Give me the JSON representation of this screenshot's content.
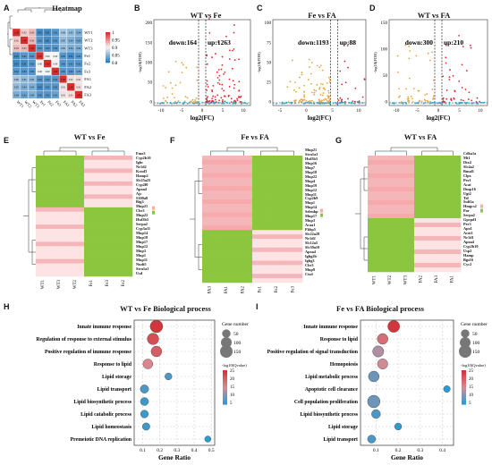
{
  "panels": {
    "A": {
      "letter": "A",
      "title": "Heatmap",
      "rows": [
        "WT1",
        "WT2",
        "WT3",
        "Fe1",
        "Fe2",
        "Fe3",
        "FA1",
        "FA2",
        "FA3"
      ],
      "cols": [
        "WT1",
        "WT2",
        "WT3",
        "Fe1",
        "Fe2",
        "Fe3",
        "FA1",
        "FA2",
        "FA3"
      ],
      "values": [
        [
          1,
          0.92,
          0.93,
          0.81,
          0.81,
          0.82,
          0.86,
          0.85,
          0.84
        ],
        [
          0.92,
          1,
          0.93,
          0.82,
          0.81,
          0.82,
          0.85,
          0.84,
          0.83
        ],
        [
          0.93,
          0.93,
          1,
          0.82,
          0.82,
          0.82,
          0.85,
          0.84,
          0.84
        ],
        [
          0.81,
          0.82,
          0.82,
          1,
          0.9,
          0.9,
          0.82,
          0.81,
          0.82
        ],
        [
          0.81,
          0.81,
          0.82,
          0.9,
          1,
          0.9,
          0.82,
          0.82,
          0.82
        ],
        [
          0.82,
          0.82,
          0.82,
          0.9,
          0.9,
          1,
          0.82,
          0.82,
          0.83
        ],
        [
          0.86,
          0.85,
          0.85,
          0.82,
          0.82,
          0.82,
          1,
          0.91,
          0.91
        ],
        [
          0.85,
          0.84,
          0.84,
          0.81,
          0.82,
          0.82,
          0.91,
          1,
          0.91
        ],
        [
          0.84,
          0.83,
          0.84,
          0.82,
          0.82,
          0.83,
          0.91,
          0.91,
          1
        ]
      ],
      "legend_ticks": [
        "1",
        "0.95",
        "0.9",
        "0.85",
        "0.8"
      ],
      "colors": {
        "high": "#d7302c",
        "mid": "#f4f4f4",
        "low": "#2f7fbf"
      }
    },
    "B": {
      "letter": "B",
      "title": "WT vs Fe",
      "down": "down:164",
      "up": "up:1263",
      "ylabel": "-log10(FDR)",
      "xlabel": "log2(FC)",
      "xticks": [
        "-10",
        "-5",
        "0",
        "5",
        "10"
      ],
      "yticks": [
        "0",
        "50",
        "100",
        "150",
        "200"
      ]
    },
    "C": {
      "letter": "C",
      "title": "Fe vs FA",
      "down": "down:1193",
      "up": "up:88",
      "ylabel": "-log10(FDR)",
      "xlabel": "log2(FC)",
      "xticks": [
        "-5",
        "0",
        "5",
        "10"
      ],
      "yticks": [
        "0",
        "25",
        "50",
        "75",
        "100"
      ]
    },
    "D": {
      "letter": "D",
      "title": "WT vs FA",
      "down": "down:300",
      "up": "up:210",
      "ylabel": "-log10(FDR)",
      "xlabel": "log2(FC)",
      "xticks": [
        "-10",
        "-5",
        "0",
        "5",
        "10"
      ],
      "yticks": [
        "0",
        "50",
        "100",
        "150"
      ]
    },
    "E": {
      "letter": "E",
      "title": "WT vs Fe",
      "genes": "Fmo3\nCyp2b10\nIghc\nNr1d2\nKcnd3\nHamp2\nSlc25a25\nCyp2f0\nApoa4\nAjc\nS100a8\nBtg3\nMup21\nCbr3\nMup22\nHsd3b5\nSerpa2\nCyp3a11\nMup14\nMup18\nMup17\nMup12\nMup3\nMup1\nMup11\nNudt5\nStra1a1\nUsd",
      "samples": [
        "WT1",
        "WT3",
        "WT2",
        "Fe1",
        "Fe3",
        "Fe2"
      ]
    },
    "F": {
      "letter": "F",
      "title": "Fe vs FA",
      "genes": "Mup21\nStra1a1\nHsd3b5\nMup16\nMup7\nMup18\nMup22\nMup4\nMup19\nMup12\nMup11\nCyp2b9\nMup1\nMup14\nSelenbp\nMup17\nMup3\nAcaa1\nFkbp5\nSlc22a28\nNr1d2\nSlc12a5\nSlc39a10\nApoa4\nIghg2b\nIghg3\nCbr3\nMup9\nCtsd",
      "samples": [
        "FA3",
        "FA1",
        "FA2",
        "Fe1",
        "Fe2",
        "Fe3"
      ]
    },
    "G": {
      "letter": "G",
      "title": "WT vs FA",
      "genes": "Cdka1a\nMt1\nDtx4\nSlc4a2\nBmal1\nClpx\nPer1\nAcat\nDusp16\nUgt2\nTef\nSult5a\nHmgcs2\nPar\nSerpa2\nGpcpd1\nPer3\nApo1\nAcot1\nNr1d1\nApoa4\nCyp2b10\nUsp2\nHamp\nBgs16\nCyc2",
      "samples": [
        "WT1",
        "WT2",
        "WT3",
        "FA2",
        "FA3",
        "FA1"
      ]
    },
    "H": {
      "letter": "H",
      "title": "WT vs Fe Biological process",
      "xlabel": "Gene Ratio",
      "terms": [
        "Innate immune response",
        "Regulation of response to external stimulus",
        "Positive regulation of immune response",
        "Response to lipid",
        "Lipid storage",
        "Lipid transport",
        "Lipid biosynthetic process",
        "Lipid catabolic process",
        "Lipid homeostasis",
        "Premeiotic DNA replication"
      ],
      "xticks": [
        "0.1",
        "0.2",
        "0.3",
        "0.4",
        "0.5"
      ]
    },
    "I": {
      "letter": "I",
      "title": "Fe vs FA Biological process",
      "xlabel": "Gene Ratio",
      "terms": [
        "Innate immune response",
        "Response to lipid",
        "Positive regulation of signal transduction",
        "Hemopoiesis",
        "Lipid metabolic process",
        "Apoptotic cell clearance",
        "Cell population proliferation",
        "Lipid biosynthetic process",
        "Lipid storage",
        "Lipid transport"
      ],
      "xticks": [
        "0.1",
        "0.2",
        "0.3",
        "0.4"
      ]
    },
    "legend_size": {
      "title": "Gene number",
      "ticks": [
        "50",
        "100",
        "150"
      ]
    },
    "legend_color_H": {
      "title": "-log10(Qvalue)",
      "ticks": [
        "25",
        "20",
        "15",
        "10",
        "5"
      ]
    },
    "legend_color_I": {
      "title": "-log10(Qvalue)",
      "ticks": [
        "25",
        "20",
        "15",
        "10",
        "5"
      ]
    }
  },
  "chart_data": [
    {
      "type": "heatmap",
      "title": "Heatmap"
    },
    {
      "type": "scatter",
      "title": "WT vs Fe",
      "xlabel": "log2(FC)",
      "ylabel": "-log10(FDR)",
      "ylim": [
        0,
        200
      ]
    },
    {
      "type": "scatter",
      "title": "Fe vs FA",
      "xlabel": "log2(FC)",
      "ylabel": "-log10(FDR)",
      "ylim": [
        0,
        100
      ]
    },
    {
      "type": "scatter",
      "title": "WT vs FA",
      "xlabel": "log2(FC)",
      "ylabel": "-log10(FDR)",
      "ylim": [
        0,
        150
      ]
    },
    {
      "type": "scatter",
      "title": "WT vs Fe Biological process",
      "xlabel": "Gene Ratio",
      "series": [
        {
          "x": [
            0.18,
            0.16,
            0.18,
            0.13,
            0.25,
            0.11,
            0.11,
            0.11,
            0.12,
            0.48
          ],
          "size": [
            150,
            120,
            100,
            80,
            30,
            50,
            45,
            40,
            35,
            20
          ],
          "q": [
            25,
            22,
            20,
            15,
            6,
            6,
            5,
            5,
            5,
            4
          ]
        }
      ]
    },
    {
      "type": "scatter",
      "title": "Fe vs FA Biological process",
      "xlabel": "Gene Ratio",
      "series": [
        {
          "x": [
            0.18,
            0.13,
            0.11,
            0.13,
            0.09,
            0.42,
            0.09,
            0.1,
            0.2,
            0.08
          ],
          "size": [
            130,
            100,
            110,
            90,
            100,
            25,
            150,
            60,
            30,
            45
          ],
          "q": [
            25,
            18,
            12,
            14,
            8,
            4,
            8,
            6,
            4,
            6
          ]
        }
      ]
    }
  ]
}
